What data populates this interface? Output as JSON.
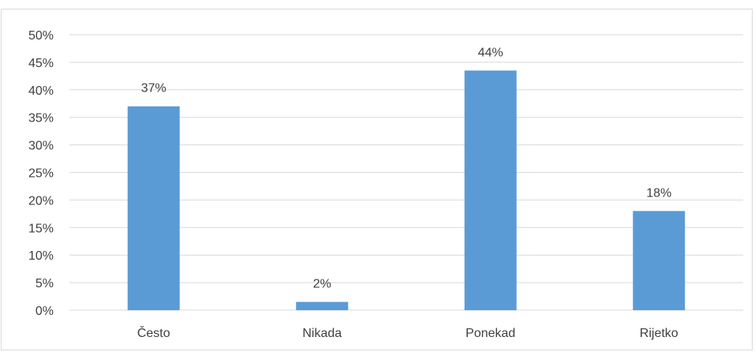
{
  "chart_data": {
    "type": "bar",
    "categories": [
      "Često",
      "Nikada",
      "Ponekad",
      "Rijetko"
    ],
    "values": [
      37,
      1.5,
      43.5,
      18
    ],
    "data_labels": [
      "37%",
      "2%",
      "44%",
      "18%"
    ],
    "ylim": [
      0,
      50
    ],
    "yticks": [
      0,
      5,
      10,
      15,
      20,
      25,
      30,
      35,
      40,
      45,
      50
    ],
    "ytick_labels": [
      "0%",
      "5%",
      "10%",
      "15%",
      "20%",
      "25%",
      "30%",
      "35%",
      "40%",
      "45%",
      "50%"
    ],
    "grid": true,
    "bar_color": "#5b9bd5",
    "grid_color": "#d9d9d9"
  }
}
